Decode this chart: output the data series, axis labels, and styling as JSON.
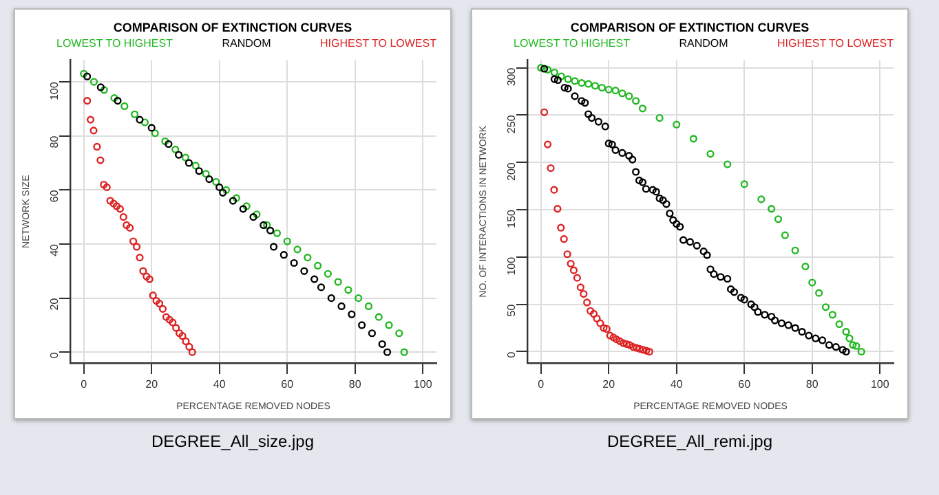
{
  "chart_data": [
    {
      "type": "scatter",
      "title": "COMPARISON OF EXTINCTION CURVES",
      "xlabel": "PERCENTAGE REMOVED NODES",
      "ylabel": "NETWORK SIZE",
      "xlim": [
        -4,
        104
      ],
      "ylim": [
        -4,
        108
      ],
      "xticks": [
        0,
        20,
        40,
        60,
        80,
        100
      ],
      "yticks": [
        0,
        20,
        40,
        60,
        80,
        100
      ],
      "grid": true,
      "legend": "top",
      "marker": "circle",
      "annotations": [
        "DEGREE_All_size.jpg"
      ],
      "series": [
        {
          "name": "LOWEST TO HIGHEST",
          "color": "#22b822",
          "x": [
            0,
            3,
            6,
            9,
            12,
            15,
            18,
            21,
            24,
            27,
            30,
            33,
            36,
            39,
            42,
            45,
            48,
            51,
            54,
            57,
            60,
            63,
            66,
            69,
            72,
            75,
            78,
            81,
            84,
            87,
            90,
            93,
            94.5
          ],
          "values": [
            103,
            100,
            97,
            94,
            91,
            88,
            85,
            81,
            78,
            75,
            72,
            69,
            66,
            63,
            60,
            57,
            54,
            51,
            47,
            44,
            41,
            38,
            35,
            32,
            29,
            26,
            23,
            20,
            17,
            13,
            10,
            7,
            0
          ]
        },
        {
          "name": "RANDOM",
          "color": "#000000",
          "x": [
            1,
            5,
            10,
            16.5,
            20,
            25,
            28,
            31,
            34,
            37,
            40,
            41,
            44,
            47,
            50,
            53,
            55,
            56,
            59,
            62,
            65,
            68,
            70,
            73,
            76,
            79,
            82,
            85,
            88,
            89.5
          ],
          "values": [
            102,
            98,
            93,
            86,
            83,
            77,
            73,
            70,
            67,
            64,
            61,
            59,
            56,
            53,
            50,
            47,
            45,
            39,
            36,
            33,
            30,
            27,
            24,
            20,
            17,
            14,
            10,
            7,
            3,
            0
          ]
        },
        {
          "name": "HIGHEST TO LOWEST",
          "color": "#dd2222",
          "x": [
            1,
            2,
            2.9,
            3.9,
            4.9,
            5.9,
            6.8,
            7.8,
            8.8,
            9.7,
            10.7,
            11.7,
            12.6,
            13.6,
            14.6,
            15.6,
            16.5,
            17.5,
            18.5,
            19.4,
            20.4,
            21.4,
            22.3,
            23.3,
            24.3,
            25.3,
            26.2,
            27.2,
            28.2,
            29.1,
            30.1,
            31.1,
            32
          ],
          "values": [
            93,
            86,
            82,
            76,
            71,
            62,
            61,
            56,
            55,
            54,
            53,
            50,
            47,
            46,
            41,
            39,
            35,
            30,
            28,
            27,
            21,
            19,
            18,
            16,
            13,
            12,
            11,
            9,
            7,
            6,
            4,
            2,
            0
          ]
        }
      ]
    },
    {
      "type": "scatter",
      "title": "COMPARISON OF EXTINCTION CURVES",
      "xlabel": "PERCENTAGE REMOVED NODES",
      "ylabel": "NO. OF INTERACTIONS IN NETWORK",
      "xlim": [
        -4,
        104
      ],
      "ylim": [
        -12,
        308
      ],
      "xticks": [
        0,
        20,
        40,
        60,
        80,
        100
      ],
      "yticks": [
        0,
        50,
        100,
        150,
        200,
        250,
        300
      ],
      "grid": true,
      "legend": "top",
      "marker": "circle",
      "annotations": [
        "DEGREE_All_remi.jpg"
      ],
      "series": [
        {
          "name": "LOWEST TO HIGHEST",
          "color": "#22b822",
          "x": [
            0,
            2,
            4,
            6,
            8,
            10,
            12,
            14,
            16,
            18,
            20,
            22,
            24,
            26,
            28,
            30,
            35,
            40,
            45,
            50,
            55,
            60,
            65,
            68,
            70,
            72,
            75,
            78,
            80,
            82,
            84,
            86,
            88,
            90,
            91,
            92,
            93,
            94.5
          ],
          "values": [
            300,
            298,
            295,
            291,
            288,
            286,
            284,
            283,
            281,
            279,
            277,
            276,
            273,
            270,
            265,
            257,
            247,
            240,
            225,
            209,
            198,
            177,
            161,
            151,
            140,
            123,
            107,
            90,
            73,
            62,
            47,
            39,
            29,
            21,
            14,
            7,
            6,
            0
          ]
        },
        {
          "name": "RANDOM",
          "color": "#000000",
          "x": [
            1,
            4,
            5,
            7,
            8,
            10,
            12,
            13,
            14,
            15,
            17,
            19,
            20,
            21,
            22,
            24,
            26,
            27,
            28,
            29,
            30,
            31,
            33,
            34,
            35,
            36,
            37,
            38,
            39,
            40,
            41,
            42,
            44,
            46,
            48,
            49,
            50,
            51,
            53,
            55,
            56,
            57,
            59,
            60,
            62,
            63,
            64,
            66,
            68,
            69,
            71,
            73,
            75,
            77,
            79,
            81,
            83,
            85,
            87,
            89,
            90
          ],
          "values": [
            299,
            288,
            287,
            279,
            278,
            270,
            265,
            263,
            251,
            247,
            243,
            238,
            220,
            219,
            213,
            210,
            207,
            203,
            190,
            181,
            179,
            172,
            171,
            169,
            162,
            160,
            156,
            146,
            139,
            135,
            132,
            118,
            116,
            112,
            106,
            102,
            87,
            82,
            79,
            77,
            66,
            63,
            57,
            55,
            50,
            47,
            42,
            39,
            37,
            33,
            30,
            28,
            25,
            21,
            17,
            14,
            12,
            7,
            5,
            2,
            0
          ]
        },
        {
          "name": "HIGHEST TO LOWEST",
          "color": "#dd2222",
          "x": [
            1,
            2,
            2.9,
            3.9,
            4.9,
            5.9,
            6.8,
            7.8,
            8.8,
            9.7,
            10.7,
            11.7,
            12.6,
            13.6,
            14.6,
            15.6,
            16.5,
            17.5,
            18.5,
            19.4,
            20.4,
            21.4,
            22.3,
            23.3,
            24.3,
            25.3,
            26.2,
            27.2,
            28.2,
            29.1,
            30.1,
            31.1,
            32
          ],
          "values": [
            253,
            219,
            194,
            171,
            151,
            131,
            119,
            103,
            93,
            86,
            78,
            68,
            61,
            52,
            43,
            40,
            35,
            30,
            25,
            24,
            17,
            15,
            13,
            11,
            9,
            8,
            7,
            5,
            4,
            3,
            2,
            1,
            0
          ]
        }
      ]
    }
  ]
}
